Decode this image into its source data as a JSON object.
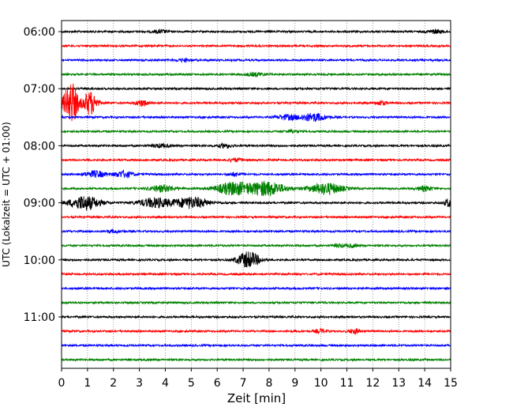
{
  "chart_data": {
    "type": "line",
    "description_kind": "seismogram helicorder",
    "xlabel": "Zeit  [min]",
    "ylabel": "UTC (Lokalzeit = UTC + 01:00)",
    "xlim": [
      0,
      15
    ],
    "x_ticks": [
      "0",
      "1",
      "2",
      "3",
      "4",
      "5",
      "6",
      "7",
      "8",
      "9",
      "10",
      "11",
      "12",
      "13",
      "14",
      "15"
    ],
    "y_tick_labels": [
      "06:00",
      "07:00",
      "08:00",
      "09:00",
      "10:00",
      "11:00"
    ],
    "rows_per_hour": 4,
    "minutes_per_row": 15,
    "color_cycle": [
      "#000000",
      "#ff0000",
      "#0000ff",
      "#008000"
    ],
    "vertical_grid": "dotted",
    "rows": [
      {
        "start": "06:00",
        "events": [
          {
            "min": 3.8,
            "amp": 2,
            "dur": 0.4
          },
          {
            "min": 14.4,
            "amp": 2,
            "dur": 0.5
          }
        ]
      },
      {
        "start": "06:15",
        "events": []
      },
      {
        "start": "06:30",
        "events": [
          {
            "min": 4.7,
            "amp": 1.5,
            "dur": 0.4
          }
        ]
      },
      {
        "start": "06:45",
        "events": [
          {
            "min": 7.5,
            "amp": 2,
            "dur": 0.6
          }
        ]
      },
      {
        "start": "07:00",
        "events": []
      },
      {
        "start": "07:15",
        "events": [
          {
            "min": 0.25,
            "amp": 14,
            "dur": 0.35
          },
          {
            "min": 0.45,
            "amp": 18,
            "dur": 0.3
          },
          {
            "min": 1.0,
            "amp": 10,
            "dur": 0.3
          },
          {
            "min": 1.2,
            "amp": 9,
            "dur": 0.3
          },
          {
            "min": 3.1,
            "amp": 4,
            "dur": 0.35
          },
          {
            "min": 12.3,
            "amp": 2.5,
            "dur": 0.3
          }
        ]
      },
      {
        "start": "07:30",
        "events": [
          {
            "min": 8.7,
            "amp": 3,
            "dur": 0.6
          },
          {
            "min": 9.7,
            "amp": 5,
            "dur": 0.7
          }
        ]
      },
      {
        "start": "07:45",
        "events": [
          {
            "min": 8.9,
            "amp": 1.5,
            "dur": 0.4
          }
        ]
      },
      {
        "start": "08:00",
        "events": [
          {
            "min": 3.8,
            "amp": 2,
            "dur": 0.5
          },
          {
            "min": 6.3,
            "amp": 2.5,
            "dur": 0.4
          }
        ]
      },
      {
        "start": "08:15",
        "events": [
          {
            "min": 6.7,
            "amp": 2,
            "dur": 0.4
          }
        ]
      },
      {
        "start": "08:30",
        "events": [
          {
            "min": 1.3,
            "amp": 4,
            "dur": 0.6
          },
          {
            "min": 2.4,
            "amp": 4,
            "dur": 0.5
          },
          {
            "min": 6.7,
            "amp": 2,
            "dur": 0.4
          }
        ]
      },
      {
        "start": "08:45",
        "events": [
          {
            "min": 3.9,
            "amp": 4,
            "dur": 0.7
          },
          {
            "min": 6.6,
            "amp": 8,
            "dur": 0.9
          },
          {
            "min": 7.9,
            "amp": 9,
            "dur": 1.0
          },
          {
            "min": 10.2,
            "amp": 7,
            "dur": 0.9
          },
          {
            "min": 14.0,
            "amp": 3,
            "dur": 0.4
          }
        ]
      },
      {
        "start": "09:00",
        "events": [
          {
            "min": 0.9,
            "amp": 9,
            "dur": 0.8
          },
          {
            "min": 3.6,
            "amp": 6,
            "dur": 0.9
          },
          {
            "min": 5.0,
            "amp": 7,
            "dur": 0.9
          },
          {
            "min": 14.9,
            "amp": 5,
            "dur": 0.2
          }
        ]
      },
      {
        "start": "09:15",
        "events": []
      },
      {
        "start": "09:30",
        "events": [
          {
            "min": 2.0,
            "amp": 1.5,
            "dur": 0.5
          }
        ]
      },
      {
        "start": "09:45",
        "events": [
          {
            "min": 10.7,
            "amp": 2,
            "dur": 0.3
          },
          {
            "min": 11.2,
            "amp": 2,
            "dur": 0.3
          }
        ]
      },
      {
        "start": "10:00",
        "events": [
          {
            "min": 7.2,
            "amp": 10,
            "dur": 0.6
          }
        ]
      },
      {
        "start": "10:15",
        "events": []
      },
      {
        "start": "10:30",
        "events": []
      },
      {
        "start": "10:45",
        "events": []
      },
      {
        "start": "11:00",
        "events": []
      },
      {
        "start": "11:15",
        "events": [
          {
            "min": 10.0,
            "amp": 2.5,
            "dur": 0.3
          },
          {
            "min": 11.3,
            "amp": 3,
            "dur": 0.3
          }
        ]
      },
      {
        "start": "11:30",
        "events": []
      },
      {
        "start": "11:45",
        "events": []
      }
    ]
  }
}
